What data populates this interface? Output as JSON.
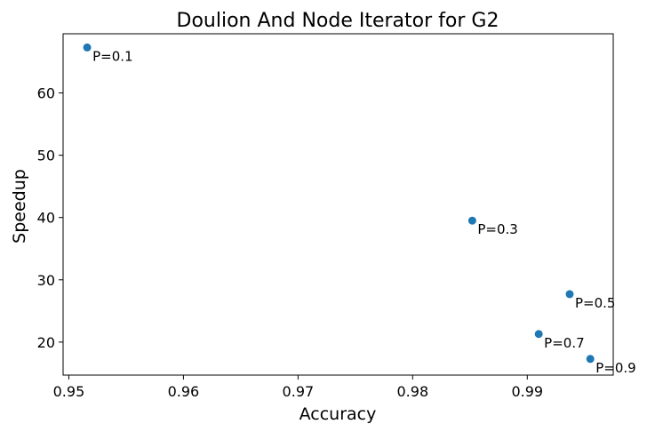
{
  "chart_data": {
    "type": "scatter",
    "title": "Doulion And Node Iterator for G2",
    "xlabel": "Accuracy",
    "ylabel": "Speedup",
    "xlim": [
      0.9495,
      0.9975
    ],
    "ylim": [
      14.7,
      69.5
    ],
    "x_ticks": [
      0.95,
      0.96,
      0.97,
      0.98,
      0.99
    ],
    "x_tick_labels": [
      "0.95",
      "0.96",
      "0.97",
      "0.98",
      "0.99"
    ],
    "y_ticks": [
      20,
      30,
      40,
      50,
      60
    ],
    "y_tick_labels": [
      "20",
      "30",
      "40",
      "50",
      "60"
    ],
    "grid": false,
    "marker_color": "#1f77b4",
    "points": [
      {
        "x": 0.9516,
        "y": 67.3,
        "label": "P=0.1"
      },
      {
        "x": 0.9852,
        "y": 39.5,
        "label": "P=0.3"
      },
      {
        "x": 0.9937,
        "y": 27.7,
        "label": "P=0.5"
      },
      {
        "x": 0.991,
        "y": 21.3,
        "label": "P=0.7"
      },
      {
        "x": 0.9955,
        "y": 17.3,
        "label": "P=0.9"
      }
    ]
  }
}
